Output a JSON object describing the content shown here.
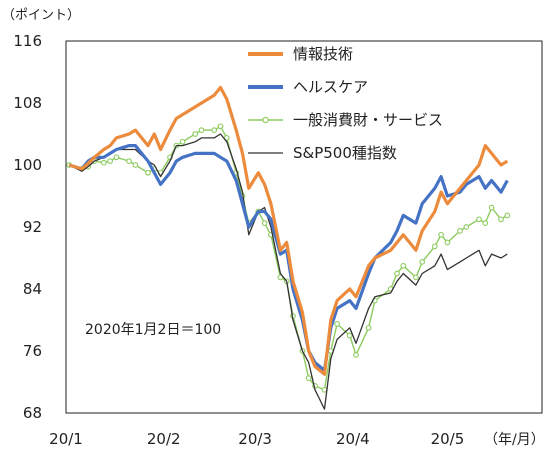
{
  "chart_data": {
    "type": "line",
    "y_unit": "（ポイント）",
    "x_unit": "（年/月）",
    "note": "2020年1月2日＝100",
    "ylim": [
      68,
      116
    ],
    "yticks": [
      "116",
      "108",
      "100",
      "92",
      "84",
      "76",
      "68"
    ],
    "xticks": [
      "20/1",
      "20/2",
      "20/3",
      "20/4",
      "20/5"
    ],
    "grid": false,
    "legend_position": "top-right",
    "series": [
      {
        "name": "情報技術",
        "color": "#ED8B3C",
        "values": [
          [
            "2020-01-02",
            100.0
          ],
          [
            "2020-01-06",
            99.5
          ],
          [
            "2020-01-08",
            100.2
          ],
          [
            "2020-01-10",
            101.0
          ],
          [
            "2020-01-13",
            102.0
          ],
          [
            "2020-01-15",
            102.5
          ],
          [
            "2020-01-17",
            103.5
          ],
          [
            "2020-01-21",
            104.0
          ],
          [
            "2020-01-23",
            104.5
          ],
          [
            "2020-01-27",
            102.5
          ],
          [
            "2020-01-29",
            104.0
          ],
          [
            "2020-01-31",
            102.0
          ],
          [
            "2020-02-03",
            104.5
          ],
          [
            "2020-02-05",
            106.0
          ],
          [
            "2020-02-07",
            106.5
          ],
          [
            "2020-02-11",
            107.5
          ],
          [
            "2020-02-13",
            108.0
          ],
          [
            "2020-02-17",
            109.0
          ],
          [
            "2020-02-19",
            110.0
          ],
          [
            "2020-02-21",
            108.5
          ],
          [
            "2020-02-24",
            104.5
          ],
          [
            "2020-02-26",
            101.5
          ],
          [
            "2020-02-28",
            97.0
          ],
          [
            "2020-03-02",
            99.0
          ],
          [
            "2020-03-04",
            97.5
          ],
          [
            "2020-03-06",
            95.0
          ],
          [
            "2020-03-09",
            89.0
          ],
          [
            "2020-03-11",
            90.0
          ],
          [
            "2020-03-13",
            85.0
          ],
          [
            "2020-03-16",
            81.0
          ],
          [
            "2020-03-18",
            76.0
          ],
          [
            "2020-03-20",
            74.0
          ],
          [
            "2020-03-23",
            73.0
          ],
          [
            "2020-03-25",
            80.0
          ],
          [
            "2020-03-27",
            82.5
          ],
          [
            "2020-03-31",
            84.0
          ],
          [
            "2020-04-02",
            83.0
          ],
          [
            "2020-04-06",
            87.0
          ],
          [
            "2020-04-08",
            88.0
          ],
          [
            "2020-04-13",
            89.0
          ],
          [
            "2020-04-15",
            90.0
          ],
          [
            "2020-04-17",
            91.0
          ],
          [
            "2020-04-21",
            89.0
          ],
          [
            "2020-04-23",
            91.5
          ],
          [
            "2020-04-27",
            94.0
          ],
          [
            "2020-04-29",
            96.5
          ],
          [
            "2020-05-01",
            95.0
          ],
          [
            "2020-05-05",
            97.0
          ],
          [
            "2020-05-07",
            98.0
          ],
          [
            "2020-05-11",
            100.0
          ],
          [
            "2020-05-13",
            102.5
          ],
          [
            "2020-05-15",
            101.5
          ],
          [
            "2020-05-18",
            100.0
          ],
          [
            "2020-05-20",
            100.5
          ]
        ]
      },
      {
        "name": "ヘルスケア",
        "color": "#4472C4",
        "values": [
          [
            "2020-01-02",
            100.0
          ],
          [
            "2020-01-06",
            99.5
          ],
          [
            "2020-01-08",
            100.5
          ],
          [
            "2020-01-10",
            101.0
          ],
          [
            "2020-01-13",
            101.0
          ],
          [
            "2020-01-15",
            101.5
          ],
          [
            "2020-01-17",
            102.0
          ],
          [
            "2020-01-21",
            102.5
          ],
          [
            "2020-01-23",
            102.5
          ],
          [
            "2020-01-27",
            100.5
          ],
          [
            "2020-01-29",
            99.0
          ],
          [
            "2020-01-31",
            97.5
          ],
          [
            "2020-02-03",
            99.0
          ],
          [
            "2020-02-05",
            100.5
          ],
          [
            "2020-02-07",
            101.0
          ],
          [
            "2020-02-11",
            101.5
          ],
          [
            "2020-02-13",
            101.5
          ],
          [
            "2020-02-17",
            101.5
          ],
          [
            "2020-02-19",
            101.0
          ],
          [
            "2020-02-21",
            100.5
          ],
          [
            "2020-02-24",
            98.0
          ],
          [
            "2020-02-26",
            95.0
          ],
          [
            "2020-02-28",
            92.0
          ],
          [
            "2020-03-02",
            94.0
          ],
          [
            "2020-03-04",
            94.0
          ],
          [
            "2020-03-06",
            93.0
          ],
          [
            "2020-03-09",
            88.5
          ],
          [
            "2020-03-11",
            89.0
          ],
          [
            "2020-03-13",
            84.0
          ],
          [
            "2020-03-16",
            80.0
          ],
          [
            "2020-03-18",
            76.0
          ],
          [
            "2020-03-20",
            74.5
          ],
          [
            "2020-03-23",
            73.5
          ],
          [
            "2020-03-25",
            79.0
          ],
          [
            "2020-03-27",
            81.5
          ],
          [
            "2020-03-31",
            82.5
          ],
          [
            "2020-04-02",
            81.5
          ],
          [
            "2020-04-06",
            86.0
          ],
          [
            "2020-04-08",
            88.0
          ],
          [
            "2020-04-13",
            90.0
          ],
          [
            "2020-04-15",
            91.5
          ],
          [
            "2020-04-17",
            93.5
          ],
          [
            "2020-04-21",
            92.5
          ],
          [
            "2020-04-23",
            95.0
          ],
          [
            "2020-04-27",
            97.0
          ],
          [
            "2020-04-29",
            98.5
          ],
          [
            "2020-05-01",
            96.0
          ],
          [
            "2020-05-05",
            96.5
          ],
          [
            "2020-05-07",
            97.5
          ],
          [
            "2020-05-11",
            98.5
          ],
          [
            "2020-05-13",
            97.0
          ],
          [
            "2020-05-15",
            98.0
          ],
          [
            "2020-05-18",
            96.5
          ],
          [
            "2020-05-20",
            98.0
          ]
        ]
      },
      {
        "name": "一般消費財・サービス",
        "color": "#8CCB5E",
        "values": [
          [
            "2020-01-02",
            100.0
          ],
          [
            "2020-01-06",
            99.5
          ],
          [
            "2020-01-08",
            99.8
          ],
          [
            "2020-01-10",
            100.5
          ],
          [
            "2020-01-13",
            100.3
          ],
          [
            "2020-01-15",
            100.5
          ],
          [
            "2020-01-17",
            101.0
          ],
          [
            "2020-01-21",
            100.5
          ],
          [
            "2020-01-23",
            100.0
          ],
          [
            "2020-01-27",
            99.0
          ],
          [
            "2020-01-29",
            99.5
          ],
          [
            "2020-01-31",
            99.0
          ],
          [
            "2020-02-03",
            101.0
          ],
          [
            "2020-02-05",
            102.5
          ],
          [
            "2020-02-07",
            103.0
          ],
          [
            "2020-02-11",
            104.0
          ],
          [
            "2020-02-13",
            104.5
          ],
          [
            "2020-02-17",
            104.5
          ],
          [
            "2020-02-19",
            105.0
          ],
          [
            "2020-02-21",
            103.5
          ],
          [
            "2020-02-24",
            99.0
          ],
          [
            "2020-02-26",
            96.0
          ],
          [
            "2020-02-28",
            92.5
          ],
          [
            "2020-03-02",
            94.0
          ],
          [
            "2020-03-04",
            92.5
          ],
          [
            "2020-03-06",
            91.0
          ],
          [
            "2020-03-09",
            85.5
          ],
          [
            "2020-03-11",
            85.0
          ],
          [
            "2020-03-13",
            80.5
          ],
          [
            "2020-03-16",
            76.0
          ],
          [
            "2020-03-18",
            72.5
          ],
          [
            "2020-03-20",
            71.5
          ],
          [
            "2020-03-23",
            71.0
          ],
          [
            "2020-03-25",
            76.0
          ],
          [
            "2020-03-27",
            79.5
          ],
          [
            "2020-03-31",
            78.0
          ],
          [
            "2020-04-02",
            75.5
          ],
          [
            "2020-04-06",
            79.0
          ],
          [
            "2020-04-08",
            82.5
          ],
          [
            "2020-04-13",
            84.0
          ],
          [
            "2020-04-15",
            86.0
          ],
          [
            "2020-04-17",
            87.0
          ],
          [
            "2020-04-21",
            85.5
          ],
          [
            "2020-04-23",
            87.5
          ],
          [
            "2020-04-27",
            89.5
          ],
          [
            "2020-04-29",
            91.0
          ],
          [
            "2020-05-01",
            90.0
          ],
          [
            "2020-05-05",
            91.5
          ],
          [
            "2020-05-07",
            92.0
          ],
          [
            "2020-05-11",
            93.0
          ],
          [
            "2020-05-13",
            92.5
          ],
          [
            "2020-05-15",
            94.5
          ],
          [
            "2020-05-18",
            93.0
          ],
          [
            "2020-05-20",
            93.5
          ]
        ]
      },
      {
        "name": "S&P500種指数",
        "color": "#333333",
        "values": [
          [
            "2020-01-02",
            100.0
          ],
          [
            "2020-01-06",
            99.2
          ],
          [
            "2020-01-08",
            99.8
          ],
          [
            "2020-01-10",
            100.5
          ],
          [
            "2020-01-13",
            101.0
          ],
          [
            "2020-01-15",
            101.5
          ],
          [
            "2020-01-17",
            102.0
          ],
          [
            "2020-01-21",
            102.0
          ],
          [
            "2020-01-23",
            102.0
          ],
          [
            "2020-01-27",
            100.5
          ],
          [
            "2020-01-29",
            100.0
          ],
          [
            "2020-01-31",
            98.5
          ],
          [
            "2020-02-03",
            100.5
          ],
          [
            "2020-02-05",
            102.5
          ],
          [
            "2020-02-07",
            102.5
          ],
          [
            "2020-02-11",
            103.0
          ],
          [
            "2020-02-13",
            103.5
          ],
          [
            "2020-02-17",
            103.5
          ],
          [
            "2020-02-19",
            104.0
          ],
          [
            "2020-02-21",
            103.0
          ],
          [
            "2020-02-24",
            99.5
          ],
          [
            "2020-02-26",
            96.5
          ],
          [
            "2020-02-28",
            91.0
          ],
          [
            "2020-03-02",
            94.0
          ],
          [
            "2020-03-04",
            94.5
          ],
          [
            "2020-03-06",
            92.0
          ],
          [
            "2020-03-09",
            86.0
          ],
          [
            "2020-03-11",
            85.0
          ],
          [
            "2020-03-13",
            80.0
          ],
          [
            "2020-03-16",
            76.0
          ],
          [
            "2020-03-18",
            74.5
          ],
          [
            "2020-03-20",
            71.0
          ],
          [
            "2020-03-23",
            68.5
          ],
          [
            "2020-03-25",
            75.0
          ],
          [
            "2020-03-27",
            77.5
          ],
          [
            "2020-03-31",
            79.0
          ],
          [
            "2020-04-02",
            77.0
          ],
          [
            "2020-04-06",
            81.5
          ],
          [
            "2020-04-08",
            83.0
          ],
          [
            "2020-04-13",
            83.5
          ],
          [
            "2020-04-15",
            85.0
          ],
          [
            "2020-04-17",
            86.0
          ],
          [
            "2020-04-21",
            84.5
          ],
          [
            "2020-04-23",
            86.0
          ],
          [
            "2020-04-27",
            87.0
          ],
          [
            "2020-04-29",
            88.5
          ],
          [
            "2020-05-01",
            86.5
          ],
          [
            "2020-05-05",
            87.5
          ],
          [
            "2020-05-07",
            88.0
          ],
          [
            "2020-05-11",
            89.0
          ],
          [
            "2020-05-13",
            87.0
          ],
          [
            "2020-05-15",
            88.5
          ],
          [
            "2020-05-18",
            88.0
          ],
          [
            "2020-05-20",
            88.5
          ]
        ]
      }
    ]
  }
}
